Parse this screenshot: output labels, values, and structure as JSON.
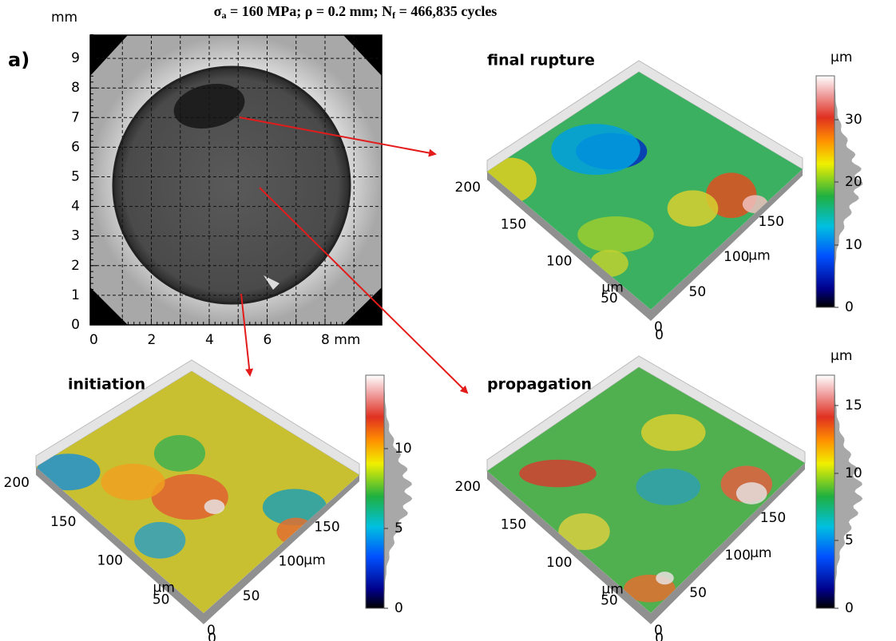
{
  "title": [
    "σ",
    "a",
    " = 160 MPa; ρ = 0.2 mm; N",
    "f",
    " = 466,835 cycles"
  ],
  "panel_label": "a)",
  "fracture_image": {
    "y_unit": "mm",
    "y_ticks": [
      "0",
      "1",
      "2",
      "3",
      "4",
      "5",
      "6",
      "7",
      "8",
      "9"
    ],
    "x_ticks": [
      "0",
      "2",
      "4",
      "6",
      "8 mm"
    ]
  },
  "surfaces": [
    {
      "label": "final rupture",
      "unit": "µm",
      "left_ticks": [
        "200",
        "150",
        "100",
        "50",
        "0"
      ],
      "right_ticks": [
        "0",
        "50",
        "100",
        "150"
      ],
      "colorbar_unit": "µm",
      "colorbar_ticks": [
        "0",
        "10",
        "20",
        "30"
      ]
    },
    {
      "label": "initiation",
      "unit": "µm",
      "left_ticks": [
        "200",
        "150",
        "100",
        "50",
        "0"
      ],
      "right_ticks": [
        "0",
        "50",
        "100",
        "150"
      ],
      "colorbar_ticks": [
        "0",
        "5",
        "10"
      ]
    },
    {
      "label": "propagation",
      "unit": "µm",
      "left_ticks": [
        "200",
        "150",
        "100",
        "50",
        "0"
      ],
      "right_ticks": [
        "0",
        "50",
        "100",
        "150"
      ],
      "colorbar_unit": "µm",
      "colorbar_ticks": [
        "0",
        "5",
        "10",
        "15"
      ]
    }
  ]
}
